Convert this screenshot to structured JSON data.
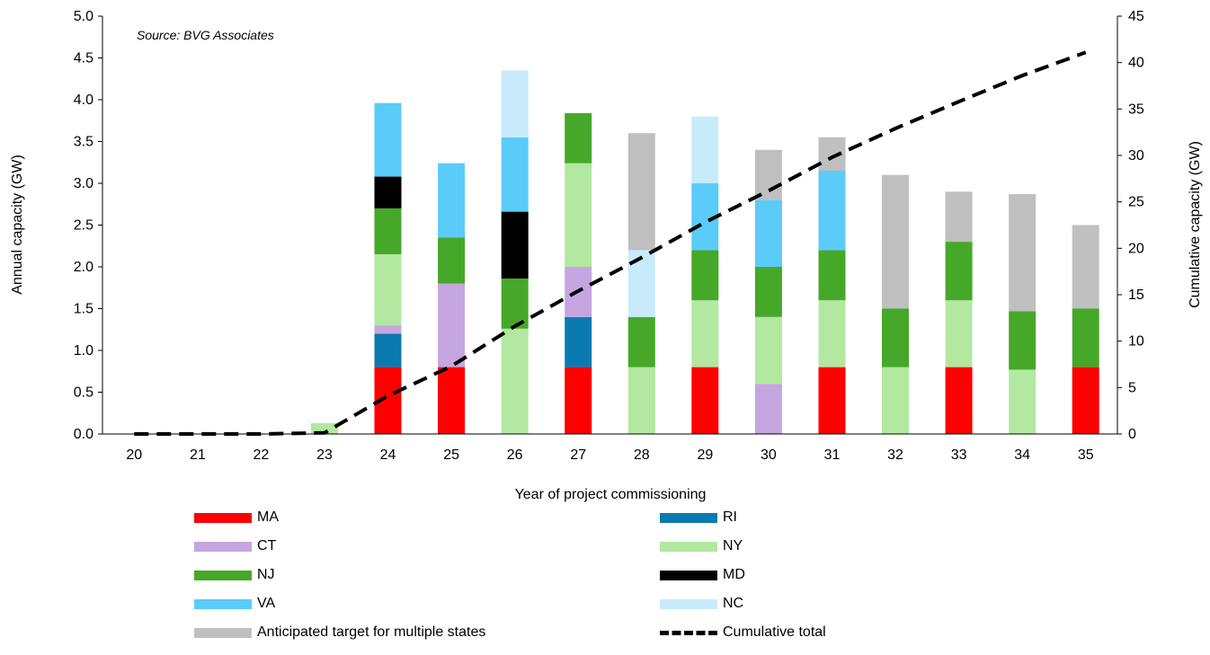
{
  "chart_data": {
    "type": "bar",
    "stacked": true,
    "source_note": "Source: BVG Associates",
    "xlabel": "Year of project commissioning",
    "ylabel": "Annual  capacity (GW)",
    "y2label": "Cumulative capacity (GW)",
    "ylim": [
      0,
      5
    ],
    "y2lim": [
      0,
      45
    ],
    "yticks": [
      "0.0",
      "0.5",
      "1.0",
      "1.5",
      "2.0",
      "2.5",
      "3.0",
      "3.5",
      "4.0",
      "4.5",
      "5.0"
    ],
    "y2ticks": [
      "0",
      "5",
      "10",
      "15",
      "20",
      "25",
      "30",
      "35",
      "40",
      "45"
    ],
    "categories": [
      "20",
      "21",
      "22",
      "23",
      "24",
      "25",
      "26",
      "27",
      "28",
      "29",
      "30",
      "31",
      "32",
      "33",
      "34",
      "35"
    ],
    "grid": false,
    "legend_position": "bottom",
    "series": [
      {
        "name": "MA",
        "color": "#ff0000",
        "values": [
          0,
          0,
          0,
          0,
          0.8,
          0.8,
          0,
          0.8,
          0,
          0.8,
          0,
          0.8,
          0,
          0.8,
          0,
          0.8
        ]
      },
      {
        "name": "RI",
        "color": "#0a7ab0",
        "values": [
          0,
          0,
          0,
          0,
          0.4,
          0,
          0,
          0.6,
          0,
          0,
          0,
          0,
          0,
          0,
          0,
          0
        ]
      },
      {
        "name": "CT",
        "color": "#c5a6e0",
        "values": [
          0,
          0,
          0,
          0,
          0.1,
          1.0,
          0,
          0.6,
          0,
          0,
          0.6,
          0,
          0,
          0,
          0,
          0
        ]
      },
      {
        "name": "NY",
        "color": "#b2e8a0",
        "values": [
          0,
          0,
          0,
          0.13,
          0.85,
          0,
          1.26,
          1.24,
          0.8,
          0.8,
          0.8,
          0.8,
          0.8,
          0.8,
          0.77,
          0
        ]
      },
      {
        "name": "NJ",
        "color": "#45a829",
        "values": [
          0,
          0,
          0,
          0,
          0.55,
          0.55,
          0.6,
          0.6,
          0.6,
          0.6,
          0.6,
          0.6,
          0.7,
          0.7,
          0.7,
          0.7
        ]
      },
      {
        "name": "MD",
        "color": "#000000",
        "values": [
          0,
          0,
          0,
          0,
          0.38,
          0,
          0.8,
          0,
          0,
          0,
          0,
          0,
          0,
          0,
          0,
          0
        ]
      },
      {
        "name": "VA",
        "color": "#5bcbfa",
        "values": [
          0,
          0,
          0,
          0,
          0.88,
          0.89,
          0.89,
          0,
          0,
          0.8,
          0.8,
          0.95,
          0,
          0,
          0,
          0
        ]
      },
      {
        "name": "NC",
        "color": "#c8ebfb",
        "values": [
          0,
          0,
          0,
          0,
          0,
          0,
          0.8,
          0,
          0.8,
          0.8,
          0,
          0,
          0,
          0,
          0,
          0
        ]
      },
      {
        "name": "Anticipated target for multiple states",
        "color": "#bfbfbf",
        "values": [
          0,
          0,
          0,
          0,
          0,
          0,
          0,
          0,
          1.4,
          0,
          0.6,
          0.4,
          1.6,
          0.6,
          1.4,
          1.0
        ]
      }
    ],
    "line_series": {
      "name": "Cumulative total",
      "axis": "secondary",
      "color": "#000000",
      "values": [
        0,
        0,
        0,
        0.13,
        4.1,
        7.3,
        11.6,
        15.4,
        19.0,
        22.8,
        26.2,
        29.8,
        32.9,
        35.8,
        38.6,
        41.1
      ]
    }
  },
  "legend": {
    "items": [
      {
        "label": "MA",
        "color": "#ff0000",
        "style": "bar"
      },
      {
        "label": "RI",
        "color": "#0a7ab0",
        "style": "bar"
      },
      {
        "label": "CT",
        "color": "#c5a6e0",
        "style": "bar"
      },
      {
        "label": "NY",
        "color": "#b2e8a0",
        "style": "bar"
      },
      {
        "label": "NJ",
        "color": "#45a829",
        "style": "bar"
      },
      {
        "label": "MD",
        "color": "#000000",
        "style": "bar"
      },
      {
        "label": "VA",
        "color": "#5bcbfa",
        "style": "bar"
      },
      {
        "label": "NC",
        "color": "#c8ebfb",
        "style": "bar"
      },
      {
        "label": "Anticipated target for multiple states",
        "color": "#bfbfbf",
        "style": "bar"
      },
      {
        "label": "Cumulative total",
        "color": "#000000",
        "style": "dashed-line"
      }
    ]
  }
}
